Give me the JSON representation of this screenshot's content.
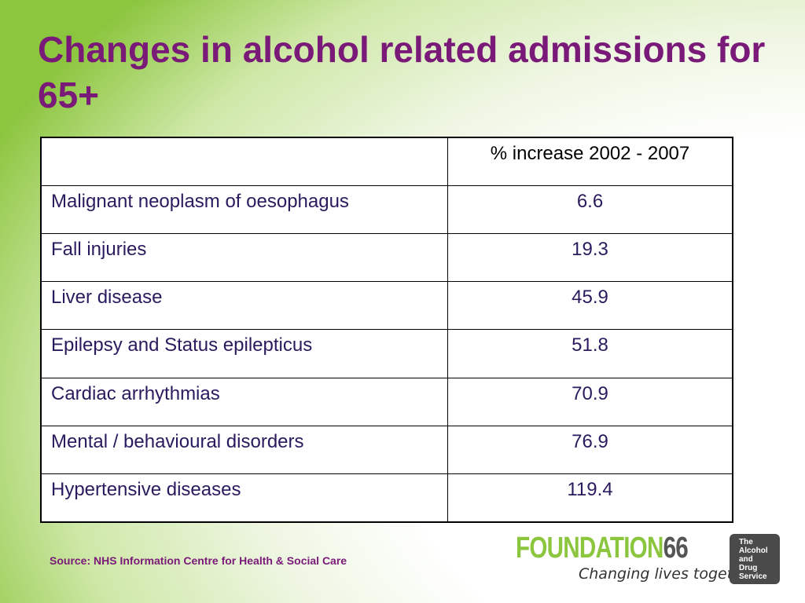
{
  "title": "Changes in alcohol related admissions for 65+",
  "table": {
    "header": [
      "",
      "% increase 2002 - 2007"
    ],
    "rows": [
      [
        "Malignant neoplasm of oesophagus",
        "6.6"
      ],
      [
        "Fall injuries",
        "19.3"
      ],
      [
        "Liver disease",
        "45.9"
      ],
      [
        "Epilepsy and Status epilepticus",
        "51.8"
      ],
      [
        "Cardiac arrhythmias",
        "70.9"
      ],
      [
        "Mental / behavioural disorders",
        "76.9"
      ],
      [
        "Hypertensive diseases",
        "119.4"
      ]
    ]
  },
  "source": "Source: NHS Information Centre for Health & Social Care",
  "logo": {
    "word_part1": "FOUNDATION",
    "word_part2": "66",
    "tagline": "Changing lives together.",
    "badge_lines": [
      "The",
      "Alcohol",
      "and",
      "Drug",
      "Service"
    ]
  },
  "colors": {
    "title": "#7a1a78",
    "background_green": "#8cc63f",
    "table_text": "#2a1a5e"
  }
}
